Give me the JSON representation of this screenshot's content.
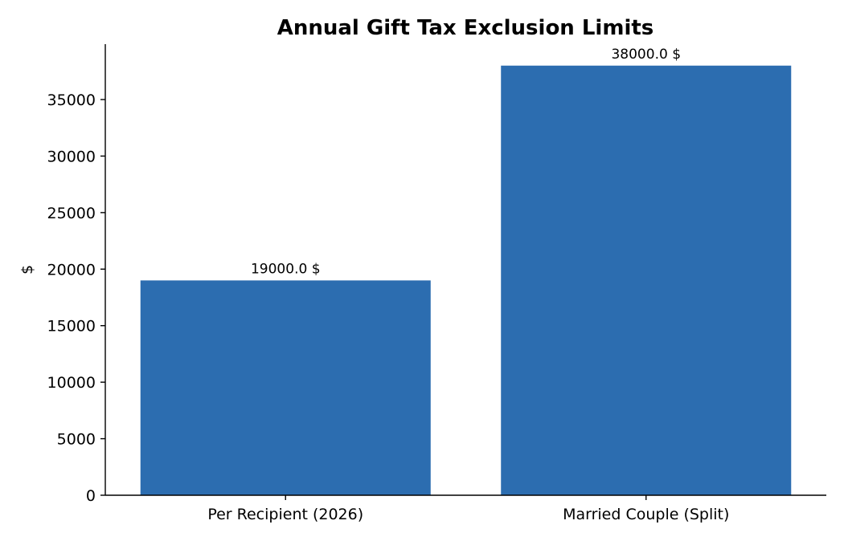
{
  "chart_data": {
    "type": "bar",
    "title": "Annual Gift Tax Exclusion Limits",
    "xlabel": "",
    "ylabel": "$",
    "categories": [
      "Per Recipient (2026)",
      "Married Couple (Split)"
    ],
    "values": [
      19000,
      38000
    ],
    "data_labels": [
      "19000.0 $",
      "38000.0 $"
    ],
    "ylim": [
      0,
      39900
    ],
    "yticks": [
      0,
      5000,
      10000,
      15000,
      20000,
      25000,
      30000,
      35000
    ],
    "ytick_labels": [
      "0",
      "5000",
      "10000",
      "15000",
      "20000",
      "25000",
      "30000",
      "35000"
    ],
    "grid": false,
    "legend": "none",
    "bar_color": "#2c6db0"
  }
}
